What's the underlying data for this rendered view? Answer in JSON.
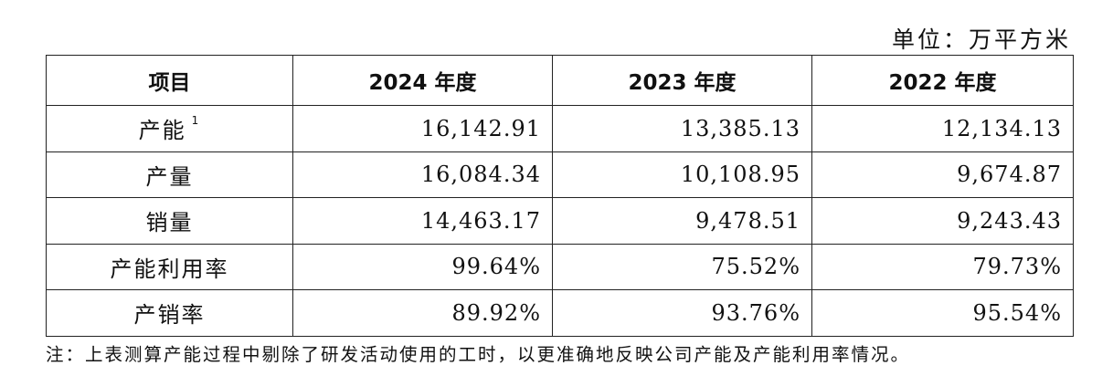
{
  "unit_label": "单位：万平方米",
  "table": {
    "headers": [
      "项目",
      "2024 年度",
      "2023 年度",
      "2022 年度"
    ],
    "rows": [
      {
        "label": "产能",
        "footnote": "1",
        "values": [
          "16,142.91",
          "13,385.13",
          "12,134.13"
        ]
      },
      {
        "label": "产量",
        "footnote": "",
        "values": [
          "16,084.34",
          "10,108.95",
          "9,674.87"
        ]
      },
      {
        "label": "销量",
        "footnote": "",
        "values": [
          "14,463.17",
          "9,478.51",
          "9,243.43"
        ]
      },
      {
        "label": "产能利用率",
        "footnote": "",
        "values": [
          "99.64%",
          "75.52%",
          "79.73%"
        ]
      },
      {
        "label": "产销率",
        "footnote": "",
        "values": [
          "89.92%",
          "93.76%",
          "95.54%"
        ]
      }
    ]
  },
  "note": "注：上表测算产能过程中剔除了研发活动使用的工时，以更准确地反映公司产能及产能利用率情况。"
}
